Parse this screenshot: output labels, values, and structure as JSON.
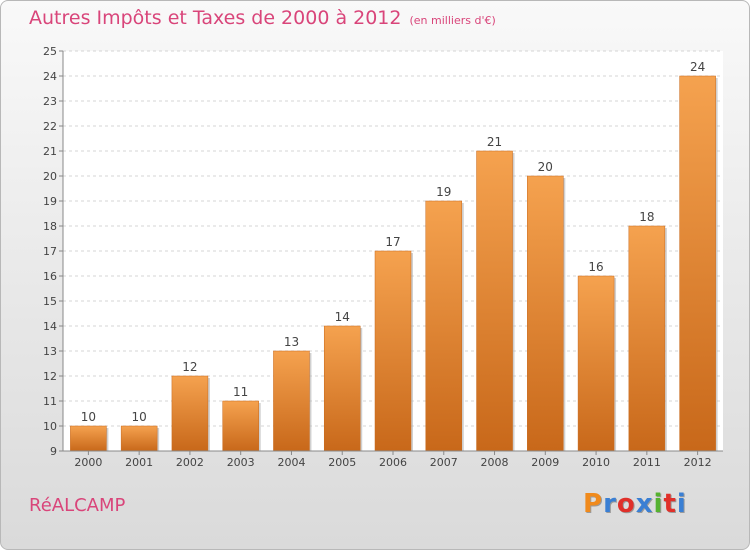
{
  "header": {
    "title": "Autres Impôts et Taxes de 2000 à 2012",
    "subtitle": "(en milliers d'€)"
  },
  "footer": {
    "place_name": "RéALCAMP",
    "logo": "Proxiti",
    "logo_colors": [
      "#f08a1c",
      "#3a7fd4",
      "#e0302a",
      "#3a7fd4",
      "#56b230",
      "#e0302a",
      "#3a7fd4"
    ]
  },
  "chart_data": {
    "type": "bar",
    "title": "Autres Impôts et Taxes de 2000 à 2012",
    "subtitle": "(en milliers d'€)",
    "categories": [
      "2000",
      "2001",
      "2002",
      "2003",
      "2004",
      "2005",
      "2006",
      "2007",
      "2008",
      "2009",
      "2010",
      "2011",
      "2012"
    ],
    "values": [
      10,
      10,
      12,
      11,
      13,
      14,
      17,
      19,
      21,
      20,
      16,
      18,
      24
    ],
    "ylim": [
      9,
      25
    ],
    "yticks": [
      9,
      10,
      11,
      12,
      13,
      14,
      15,
      16,
      17,
      18,
      19,
      20,
      21,
      22,
      23,
      24,
      25
    ],
    "grid": true,
    "bar_color_top": "#f5a24f",
    "bar_color_bottom": "#c8681a"
  }
}
